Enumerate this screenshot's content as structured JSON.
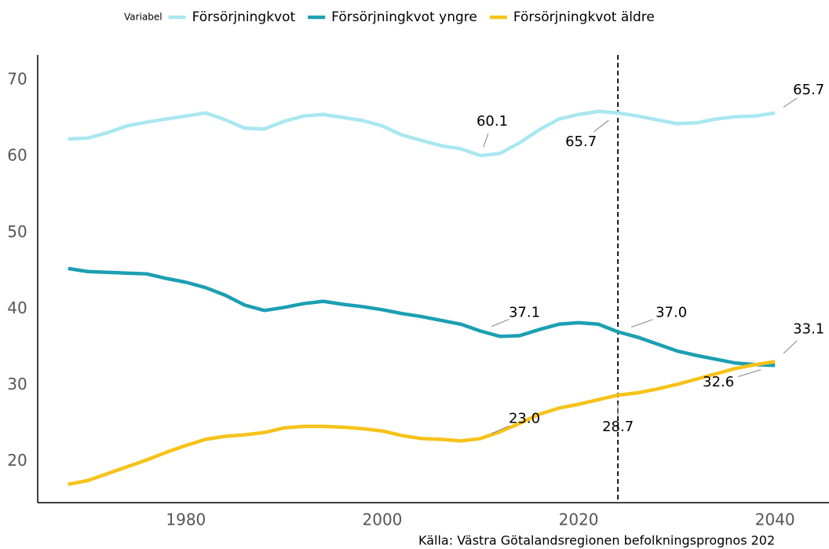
{
  "chart_data": {
    "type": "line",
    "legend_title": "Variabel",
    "source": "Källa: Västra Götalandsregionen befolkningsprognos 202",
    "x": [
      1968,
      1970,
      1972,
      1974,
      1976,
      1978,
      1980,
      1982,
      1984,
      1986,
      1988,
      1990,
      1992,
      1994,
      1996,
      1998,
      2000,
      2002,
      2004,
      2006,
      2008,
      2010,
      2012,
      2014,
      2016,
      2018,
      2020,
      2022,
      2024,
      2026,
      2028,
      2030,
      2032,
      2034,
      2036,
      2038,
      2040
    ],
    "series": [
      {
        "name": "Försörjningkvot",
        "color": "#a9e7f0",
        "values": [
          62.3,
          62.4,
          63.1,
          64.0,
          64.5,
          64.9,
          65.3,
          65.7,
          64.8,
          63.7,
          63.6,
          64.6,
          65.3,
          65.5,
          65.1,
          64.7,
          64.0,
          62.8,
          62.1,
          61.4,
          61.0,
          60.1,
          60.4,
          61.8,
          63.5,
          64.9,
          65.5,
          65.9,
          65.7,
          65.3,
          64.8,
          64.3,
          64.4,
          64.9,
          65.2,
          65.3,
          65.7
        ]
      },
      {
        "name": "Försörjningkvot yngre",
        "color": "#1c9fb2",
        "values": [
          45.3,
          44.9,
          44.8,
          44.7,
          44.6,
          44.0,
          43.5,
          42.8,
          41.8,
          40.5,
          39.8,
          40.2,
          40.7,
          41.0,
          40.6,
          40.3,
          39.9,
          39.4,
          39.0,
          38.5,
          38.0,
          37.1,
          36.4,
          36.5,
          37.3,
          38.0,
          38.2,
          38.0,
          37.0,
          36.3,
          35.4,
          34.5,
          33.9,
          33.4,
          32.9,
          32.7,
          32.6
        ]
      },
      {
        "name": "Försörjningkvot äldre",
        "color": "#f7c21a",
        "values": [
          17.0,
          17.5,
          18.4,
          19.3,
          20.2,
          21.2,
          22.1,
          22.9,
          23.3,
          23.5,
          23.8,
          24.4,
          24.6,
          24.6,
          24.5,
          24.3,
          24.0,
          23.4,
          23.0,
          22.9,
          22.7,
          23.0,
          23.9,
          25.0,
          26.2,
          27.0,
          27.5,
          28.1,
          28.7,
          29.0,
          29.5,
          30.1,
          30.8,
          31.5,
          32.2,
          32.7,
          33.1
        ]
      }
    ],
    "annotations": [
      {
        "label": "60.1",
        "x": 2010,
        "y": 60.1
      },
      {
        "label": "65.7",
        "x": 2024,
        "y": 65.7
      },
      {
        "label": "65.7",
        "x": 2040,
        "y": 65.7
      },
      {
        "label": "37.1",
        "x": 2010,
        "y": 37.1
      },
      {
        "label": "37.0",
        "x": 2024,
        "y": 37.0
      },
      {
        "label": "33.1",
        "x": 2040,
        "y": 33.1
      },
      {
        "label": "32.6",
        "x": 2040,
        "y": 32.6
      },
      {
        "label": "23.0",
        "x": 2010,
        "y": 23.0
      },
      {
        "label": "28.7",
        "x": 2024,
        "y": 28.7
      }
    ],
    "vline": 2024,
    "xlim": [
      1964.9,
      2045.5
    ],
    "xticks": [
      1980,
      2000,
      2020,
      2040
    ],
    "ylim": [
      14.6,
      73.3
    ],
    "yticks": [
      20,
      30,
      40,
      50,
      60,
      70
    ],
    "grid": false,
    "legend": "top"
  }
}
